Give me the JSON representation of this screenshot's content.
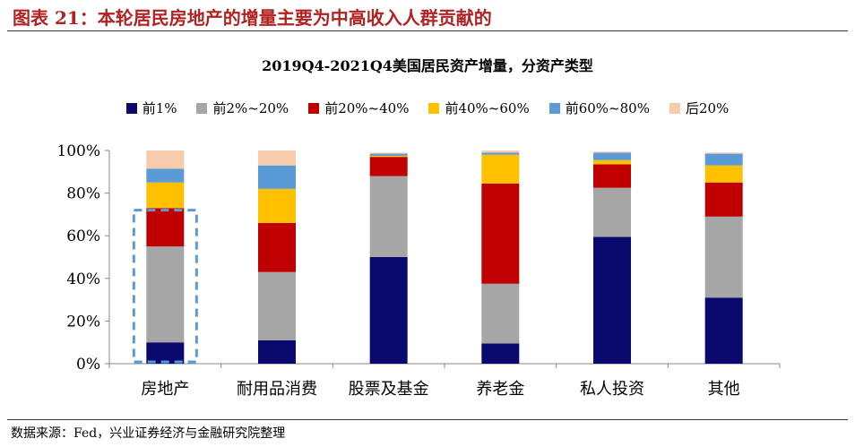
{
  "figure_title": "图表 21：本轮居民房地产的增量主要为中高收入人群贡献的",
  "source": "数据来源：Fed，兴业证券经济与金融研究院整理",
  "chart_data": {
    "type": "bar",
    "stacked": true,
    "title": "2019Q4-2021Q4美国居民资产增量，分资产类型",
    "categories": [
      "房地产",
      "耐用品消费",
      "股票及基金",
      "养老金",
      "私人投资",
      "其他"
    ],
    "ylim": [
      0,
      100
    ],
    "yticks": [
      "0%",
      "20%",
      "40%",
      "60%",
      "80%",
      "100%"
    ],
    "legend_position": "top",
    "highlight_category": "房地产",
    "series": [
      {
        "name": "前1%",
        "color": "#0a0a6e",
        "values": [
          10,
          11,
          50,
          9.5,
          59.5,
          31
        ]
      },
      {
        "name": "前2%~20%",
        "color": "#a6a6a6",
        "values": [
          45,
          32,
          38,
          28,
          23,
          38
        ]
      },
      {
        "name": "前20%~40%",
        "color": "#c00000",
        "values": [
          18,
          23,
          9,
          47,
          11,
          16
        ]
      },
      {
        "name": "前40%~60%",
        "color": "#ffc000",
        "values": [
          12,
          16,
          0.5,
          13.5,
          2,
          8
        ]
      },
      {
        "name": "前60%~80%",
        "color": "#5b9bd5",
        "values": [
          6.5,
          11,
          1,
          1,
          3.5,
          5.5
        ]
      },
      {
        "name": "后20%",
        "color": "#f8cbad",
        "values": [
          8.5,
          7,
          0.5,
          1,
          0.5,
          0.5
        ]
      }
    ]
  }
}
